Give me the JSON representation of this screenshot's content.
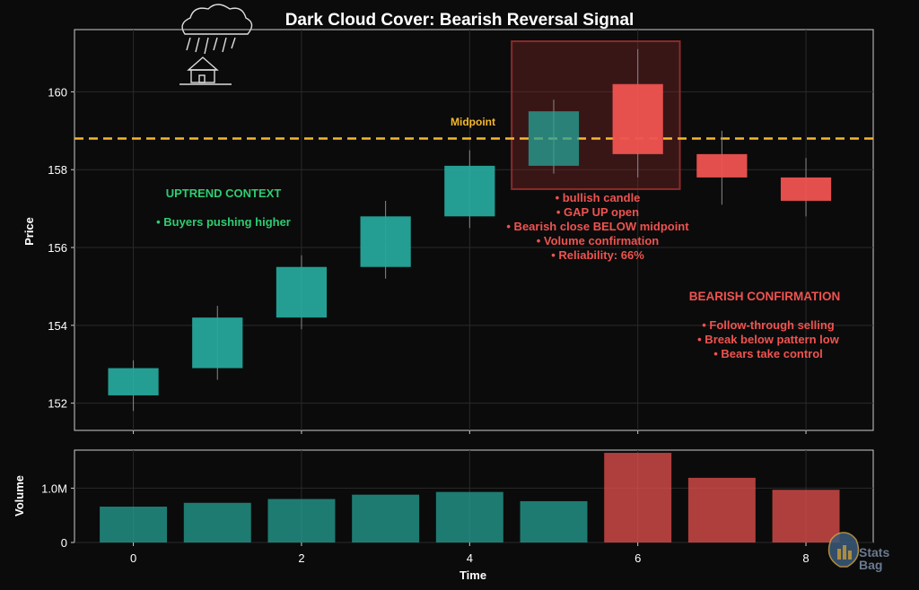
{
  "chart_data": [
    {
      "type": "candlestick",
      "title": "Dark Cloud Cover: Bearish Reversal Signal",
      "ylabel": "Price",
      "ylim": [
        151.3,
        161.6
      ],
      "xlim": [
        -0.7,
        8.8
      ],
      "yticks": [
        152,
        154,
        156,
        158,
        160
      ],
      "candles": [
        {
          "x": 0,
          "open": 152.2,
          "high": 153.1,
          "low": 151.8,
          "close": 152.9
        },
        {
          "x": 1,
          "open": 152.9,
          "high": 154.5,
          "low": 152.6,
          "close": 154.2
        },
        {
          "x": 2,
          "open": 154.2,
          "high": 155.8,
          "low": 153.9,
          "close": 155.5
        },
        {
          "x": 3,
          "open": 155.5,
          "high": 157.2,
          "low": 155.2,
          "close": 156.8
        },
        {
          "x": 4,
          "open": 156.8,
          "high": 158.5,
          "low": 156.5,
          "close": 158.1
        },
        {
          "x": 5,
          "open": 158.1,
          "high": 159.8,
          "low": 157.9,
          "close": 159.5
        },
        {
          "x": 6,
          "open": 160.2,
          "high": 161.1,
          "low": 157.8,
          "close": 158.4
        },
        {
          "x": 7,
          "open": 158.4,
          "high": 159.0,
          "low": 157.1,
          "close": 157.8
        },
        {
          "x": 8,
          "open": 157.8,
          "high": 158.3,
          "low": 156.8,
          "close": 157.2
        }
      ],
      "midpoint": {
        "value": 158.8,
        "label": "Midpoint"
      },
      "highlight": {
        "x_from": 4.5,
        "x_to": 6.5,
        "y_from": 157.5,
        "y_to": 161.3
      },
      "annotations": {
        "uptrend_title": "UPTREND CONTEXT",
        "uptrend_text": "• Buyers pushing higher",
        "pattern_lines": [
          "• bullish candle",
          "• GAP UP open",
          "• Bearish close BELOW midpoint",
          "• Volume confirmation",
          "• Reliability: 66%"
        ],
        "confirm_title": "BEARISH CONFIRMATION",
        "confirm_lines": [
          "• Follow-through selling",
          "• Break below pattern low",
          "• Bears take control"
        ]
      },
      "colors": {
        "bull": "#26a69a",
        "bear": "#ef5350",
        "midpoint": "#f5b82e",
        "uptrend_text": "#2ecc71",
        "pattern_text": "#ef5350"
      }
    },
    {
      "type": "bar",
      "ylabel": "Volume",
      "xlabel": "Time",
      "ylim": [
        0,
        1700000
      ],
      "yticks": [
        {
          "value": 0,
          "label": "0"
        },
        {
          "value": 1000000,
          "label": "1.0M"
        }
      ],
      "xticks": [
        0,
        2,
        4,
        6,
        8
      ],
      "x": [
        0,
        1,
        2,
        3,
        4,
        5,
        6,
        7,
        8
      ],
      "values": [
        660000,
        730000,
        800000,
        880000,
        930000,
        760000,
        1650000,
        1190000,
        970000
      ],
      "bar_kind": [
        "bull",
        "bull",
        "bull",
        "bull",
        "bull",
        "bull",
        "bear",
        "bear",
        "bear"
      ]
    }
  ],
  "logo": {
    "line1": "Stats",
    "line2": "Bag"
  }
}
